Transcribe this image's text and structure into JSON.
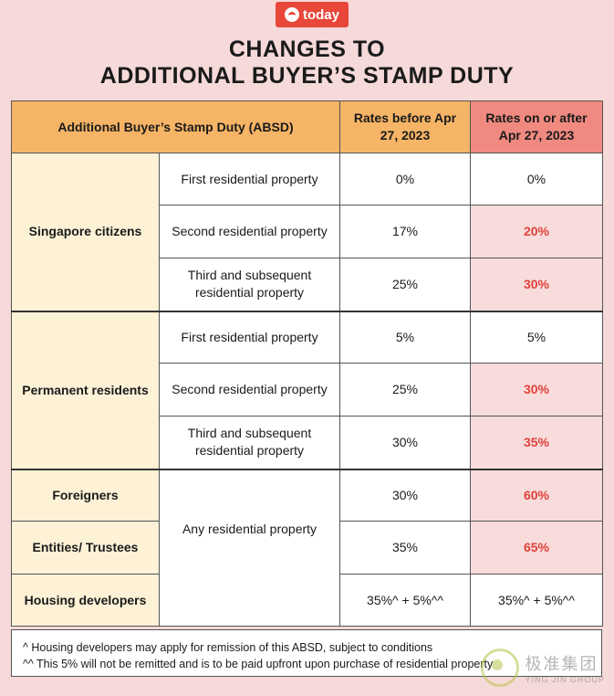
{
  "brand": {
    "name": "today"
  },
  "title": {
    "line1": "CHANGES TO",
    "line2": "ADDITIONAL BUYER’S STAMP DUTY"
  },
  "table": {
    "headers": {
      "col1": "Additional Buyer’s Stamp Duty (ABSD)",
      "col2": "Rates before Apr 27, 2023",
      "col3": "Rates on or after Apr 27, 2023"
    },
    "groups": {
      "citizens": "Singapore citizens",
      "pr": "Permanent residents",
      "foreigners": "Foreigners",
      "entities": "Entities/ Trustees",
      "developers": "Housing developers"
    },
    "property_types": {
      "first": "First residential property",
      "second": "Second residential property",
      "third": "Third and subsequent residential property",
      "any": "Any residential property"
    },
    "rows": [
      {
        "before": "0%",
        "after": "0%"
      },
      {
        "before": "17%",
        "after": "20%"
      },
      {
        "before": "25%",
        "after": "30%"
      },
      {
        "before": "5%",
        "after": "5%"
      },
      {
        "before": "25%",
        "after": "30%"
      },
      {
        "before": "30%",
        "after": "35%"
      },
      {
        "before": "30%",
        "after": "60%"
      },
      {
        "before": "35%",
        "after": "65%"
      },
      {
        "before": "35%^ + 5%^^",
        "after": "35%^ + 5%^^"
      }
    ]
  },
  "footnotes": [
    "^ Housing developers may apply for remission of this ABSD, subject to conditions",
    "^^ This 5% will not be remitted and is to be paid upfront upon purchase of residential property"
  ],
  "watermark": {
    "cn": "极准集团",
    "en": "YING JIN GROUP"
  },
  "colors": {
    "header": "#f6b466",
    "header_highlight": "#f08a80",
    "group": "#fdf1d6",
    "increase_bg": "#f8dcdc",
    "increase_text": "#e0413a",
    "brand": "#e8473a"
  }
}
